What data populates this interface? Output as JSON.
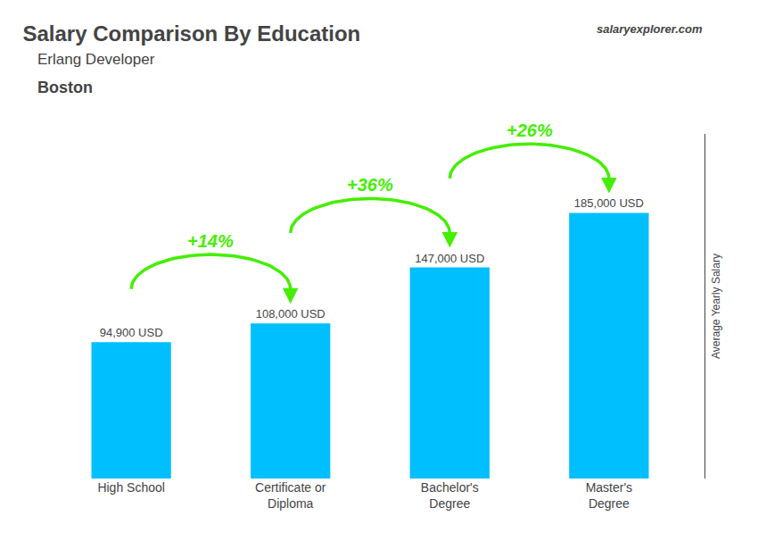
{
  "chart_data": {
    "type": "bar",
    "title": "Salary Comparison By Education",
    "subtitle": [
      "Erlang Developer",
      "Boston"
    ],
    "watermark": [
      "salary",
      "explorer",
      ".com"
    ],
    "ylabel": "Average Yearly Salary",
    "categories": [
      "High School",
      "Certificate or\nDiploma",
      "Bachelor's\nDegree",
      "Master's\nDegree"
    ],
    "values": [
      94900,
      108000,
      147000,
      185000
    ],
    "value_labels": [
      "94,900 USD",
      "108,000 USD",
      "147,000 USD",
      "185,000 USD"
    ],
    "data_labels": true,
    "color": "#00BFFF",
    "ylim": [
      0,
      240000
    ],
    "grid": false,
    "tick_labels": "x",
    "annotations": [
      {
        "text": "+14%",
        "from": 0,
        "to": 1,
        "color": "#44EE00"
      },
      {
        "text": "+36%",
        "from": 1,
        "to": 2,
        "color": "#44EE00"
      },
      {
        "text": "+26%",
        "from": 2,
        "to": 3,
        "color": "#44EE00"
      }
    ]
  }
}
